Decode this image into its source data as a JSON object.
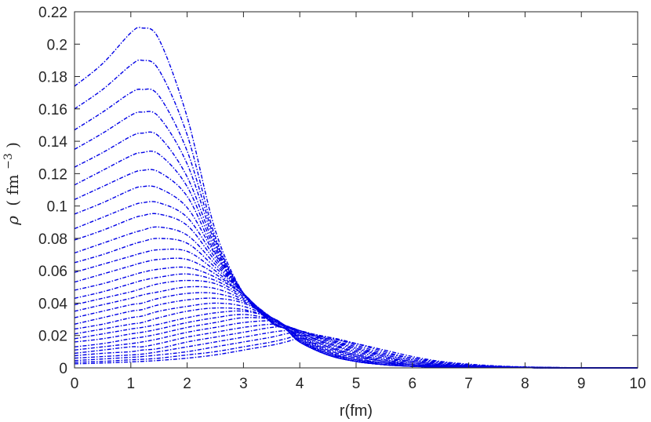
{
  "chart_data": {
    "type": "line",
    "title": "",
    "xlabel": "r(fm)",
    "ylabel": "ρ (fm⁻³)",
    "ylabel_parts": {
      "symbol": "ρ",
      "open": "(",
      "unit": "fm",
      "exp": "−3",
      "close": ")"
    },
    "xlim": [
      0,
      10
    ],
    "ylim": [
      0,
      0.22
    ],
    "xticks": [
      "0",
      "1",
      "2",
      "3",
      "4",
      "5",
      "6",
      "7",
      "8",
      "9",
      "10"
    ],
    "yticks": [
      "0",
      "0.02",
      "0.04",
      "0.06",
      "0.08",
      "0.1",
      "0.12",
      "0.14",
      "0.16",
      "0.18",
      "0.2",
      "0.22"
    ],
    "grid": false,
    "legend": "none",
    "line_style": "dash-dot",
    "line_color": "#0000e6",
    "x": [
      0,
      0.5,
      1,
      1.2,
      1.5,
      2,
      2.5,
      3,
      3.5,
      3.75,
      4,
      4.5,
      5,
      5.5,
      6,
      6.5,
      7,
      7.5,
      8,
      8.5,
      9,
      10
    ],
    "series": [
      {
        "values": [
          0.174,
          0.188,
          0.207,
          0.21,
          0.203,
          0.155,
          0.085,
          0.046,
          0.028,
          0.024,
          0.016,
          0.008,
          0.004,
          0.002,
          0.001,
          0.0005,
          0.0003,
          0.0001,
          0.0001,
          0,
          0,
          0
        ]
      },
      {
        "values": [
          0.16,
          0.172,
          0.187,
          0.19,
          0.184,
          0.144,
          0.081,
          0.046,
          0.028,
          0.024,
          0.016,
          0.008,
          0.004,
          0.002,
          0.001,
          0.0005,
          0.0003,
          0.0001,
          0.0001,
          0,
          0,
          0
        ]
      },
      {
        "values": [
          0.147,
          0.158,
          0.17,
          0.172,
          0.168,
          0.134,
          0.079,
          0.046,
          0.028,
          0.024,
          0.016,
          0.008,
          0.004,
          0.002,
          0.001,
          0.0005,
          0.0003,
          0.0001,
          0.0001,
          0,
          0,
          0
        ]
      },
      {
        "values": [
          0.135,
          0.145,
          0.156,
          0.158,
          0.155,
          0.126,
          0.077,
          0.046,
          0.028,
          0.024,
          0.016,
          0.008,
          0.004,
          0.002,
          0.001,
          0.0005,
          0.0003,
          0.0001,
          0.0001,
          0,
          0,
          0
        ]
      },
      {
        "values": [
          0.124,
          0.133,
          0.143,
          0.145,
          0.143,
          0.118,
          0.075,
          0.046,
          0.028,
          0.024,
          0.016,
          0.008,
          0.004,
          0.002,
          0.001,
          0.0005,
          0.0003,
          0.0001,
          0.0001,
          0,
          0,
          0
        ]
      },
      {
        "values": [
          0.113,
          0.122,
          0.131,
          0.133,
          0.132,
          0.112,
          0.073,
          0.046,
          0.028,
          0.024,
          0.016,
          0.008,
          0.004,
          0.002,
          0.001,
          0.0005,
          0.0003,
          0.0001,
          0.0001,
          0,
          0,
          0
        ]
      },
      {
        "values": [
          0.104,
          0.112,
          0.12,
          0.122,
          0.121,
          0.106,
          0.071,
          0.046,
          0.028,
          0.024,
          0.016,
          0.008,
          0.004,
          0.002,
          0.001,
          0.0005,
          0.0003,
          0.0001,
          0.0001,
          0,
          0,
          0
        ]
      },
      {
        "values": [
          0.095,
          0.102,
          0.11,
          0.112,
          0.111,
          0.099,
          0.07,
          0.046,
          0.028,
          0.024,
          0.016,
          0.008,
          0.004,
          0.002,
          0.001,
          0.0005,
          0.0003,
          0.0001,
          0.0001,
          0,
          0,
          0
        ]
      },
      {
        "values": [
          0.086,
          0.093,
          0.1,
          0.102,
          0.102,
          0.093,
          0.068,
          0.046,
          0.028,
          0.024,
          0.016,
          0.008,
          0.004,
          0.002,
          0.001,
          0.0005,
          0.0003,
          0.0001,
          0.0001,
          0,
          0,
          0
        ]
      },
      {
        "values": [
          0.079,
          0.085,
          0.092,
          0.094,
          0.095,
          0.088,
          0.066,
          0.046,
          0.029,
          0.024,
          0.017,
          0.008,
          0.004,
          0.002,
          0.001,
          0.0005,
          0.0003,
          0.0001,
          0.0001,
          0,
          0,
          0
        ]
      },
      {
        "values": [
          0.071,
          0.077,
          0.083,
          0.085,
          0.087,
          0.082,
          0.064,
          0.046,
          0.029,
          0.024,
          0.017,
          0.008,
          0.004,
          0.002,
          0.001,
          0.0005,
          0.0003,
          0.0001,
          0.0001,
          0,
          0,
          0
        ]
      },
      {
        "values": [
          0.065,
          0.07,
          0.076,
          0.078,
          0.08,
          0.077,
          0.062,
          0.046,
          0.029,
          0.024,
          0.017,
          0.009,
          0.004,
          0.002,
          0.001,
          0.0005,
          0.0003,
          0.0001,
          0.0001,
          0,
          0,
          0
        ]
      },
      {
        "values": [
          0.059,
          0.064,
          0.069,
          0.071,
          0.073,
          0.072,
          0.06,
          0.045,
          0.029,
          0.024,
          0.017,
          0.009,
          0.005,
          0.002,
          0.001,
          0.0006,
          0.0003,
          0.0001,
          0.0001,
          0,
          0,
          0
        ]
      },
      {
        "values": [
          0.053,
          0.058,
          0.063,
          0.065,
          0.067,
          0.067,
          0.058,
          0.045,
          0.03,
          0.025,
          0.018,
          0.009,
          0.005,
          0.002,
          0.001,
          0.0006,
          0.0003,
          0.0001,
          0.0001,
          0,
          0,
          0
        ]
      },
      {
        "values": [
          0.048,
          0.052,
          0.057,
          0.059,
          0.061,
          0.062,
          0.056,
          0.045,
          0.03,
          0.025,
          0.018,
          0.01,
          0.005,
          0.003,
          0.001,
          0.0006,
          0.0003,
          0.0002,
          0.0001,
          0,
          0,
          0
        ]
      },
      {
        "values": [
          0.043,
          0.047,
          0.052,
          0.054,
          0.056,
          0.058,
          0.054,
          0.044,
          0.031,
          0.025,
          0.019,
          0.01,
          0.005,
          0.003,
          0.001,
          0.0007,
          0.0003,
          0.0002,
          0.0001,
          0,
          0,
          0
        ]
      },
      {
        "values": [
          0.039,
          0.043,
          0.047,
          0.049,
          0.052,
          0.054,
          0.052,
          0.043,
          0.031,
          0.025,
          0.019,
          0.011,
          0.006,
          0.003,
          0.002,
          0.0007,
          0.0004,
          0.0002,
          0.0001,
          0,
          0,
          0
        ]
      },
      {
        "values": [
          0.035,
          0.039,
          0.043,
          0.045,
          0.047,
          0.05,
          0.049,
          0.042,
          0.031,
          0.025,
          0.02,
          0.011,
          0.006,
          0.003,
          0.002,
          0.0008,
          0.0004,
          0.0002,
          0.0001,
          0,
          0,
          0
        ]
      },
      {
        "values": [
          0.031,
          0.035,
          0.039,
          0.04,
          0.043,
          0.046,
          0.046,
          0.041,
          0.031,
          0.025,
          0.02,
          0.012,
          0.007,
          0.004,
          0.002,
          0.0009,
          0.0005,
          0.0002,
          0.0001,
          0,
          0,
          0
        ]
      },
      {
        "values": [
          0.027,
          0.031,
          0.035,
          0.036,
          0.039,
          0.042,
          0.043,
          0.04,
          0.031,
          0.026,
          0.021,
          0.013,
          0.007,
          0.004,
          0.002,
          0.001,
          0.0005,
          0.0003,
          0.0001,
          0.0001,
          0,
          0
        ]
      },
      {
        "values": [
          0.024,
          0.027,
          0.031,
          0.032,
          0.035,
          0.038,
          0.04,
          0.038,
          0.031,
          0.026,
          0.021,
          0.013,
          0.008,
          0.004,
          0.002,
          0.0011,
          0.0006,
          0.0003,
          0.0001,
          0.0001,
          0,
          0
        ]
      },
      {
        "values": [
          0.021,
          0.024,
          0.027,
          0.028,
          0.031,
          0.035,
          0.037,
          0.036,
          0.031,
          0.026,
          0.022,
          0.014,
          0.008,
          0.005,
          0.002,
          0.0012,
          0.0006,
          0.0003,
          0.0002,
          0.0001,
          0,
          0
        ]
      },
      {
        "values": [
          0.018,
          0.021,
          0.024,
          0.025,
          0.027,
          0.031,
          0.034,
          0.035,
          0.031,
          0.026,
          0.022,
          0.015,
          0.009,
          0.005,
          0.003,
          0.0014,
          0.0007,
          0.0004,
          0.0002,
          0.0001,
          0,
          0
        ]
      },
      {
        "values": [
          0.016,
          0.018,
          0.021,
          0.022,
          0.024,
          0.028,
          0.031,
          0.033,
          0.03,
          0.026,
          0.022,
          0.015,
          0.01,
          0.006,
          0.003,
          0.0016,
          0.0008,
          0.0004,
          0.0002,
          0.0001,
          0,
          0
        ]
      },
      {
        "values": [
          0.013,
          0.015,
          0.018,
          0.019,
          0.021,
          0.025,
          0.028,
          0.031,
          0.03,
          0.026,
          0.023,
          0.016,
          0.01,
          0.006,
          0.004,
          0.0018,
          0.0009,
          0.0005,
          0.0002,
          0.0001,
          0,
          0
        ]
      },
      {
        "values": [
          0.011,
          0.013,
          0.015,
          0.016,
          0.018,
          0.022,
          0.025,
          0.028,
          0.029,
          0.026,
          0.023,
          0.017,
          0.011,
          0.007,
          0.004,
          0.002,
          0.001,
          0.0005,
          0.0003,
          0.0001,
          0,
          0
        ]
      },
      {
        "values": [
          0.009,
          0.011,
          0.013,
          0.013,
          0.015,
          0.019,
          0.022,
          0.025,
          0.027,
          0.026,
          0.023,
          0.017,
          0.012,
          0.007,
          0.004,
          0.0023,
          0.0012,
          0.0006,
          0.0003,
          0.0001,
          0,
          0
        ]
      },
      {
        "values": [
          0.0075,
          0.009,
          0.01,
          0.011,
          0.012,
          0.016,
          0.019,
          0.022,
          0.025,
          0.025,
          0.023,
          0.018,
          0.012,
          0.008,
          0.005,
          0.0026,
          0.0013,
          0.0007,
          0.0003,
          0.0002,
          0,
          0
        ]
      },
      {
        "values": [
          0.006,
          0.007,
          0.008,
          0.0085,
          0.01,
          0.013,
          0.016,
          0.019,
          0.022,
          0.023,
          0.023,
          0.018,
          0.013,
          0.008,
          0.005,
          0.003,
          0.0015,
          0.0008,
          0.0004,
          0.0002,
          0.0001,
          0
        ]
      },
      {
        "values": [
          0.0045,
          0.0055,
          0.0065,
          0.007,
          0.008,
          0.01,
          0.013,
          0.016,
          0.019,
          0.021,
          0.022,
          0.019,
          0.014,
          0.009,
          0.006,
          0.0033,
          0.0017,
          0.0009,
          0.0004,
          0.0002,
          0.0001,
          0
        ]
      },
      {
        "values": [
          0.0035,
          0.004,
          0.005,
          0.0053,
          0.006,
          0.008,
          0.01,
          0.013,
          0.016,
          0.018,
          0.02,
          0.019,
          0.015,
          0.01,
          0.006,
          0.0037,
          0.002,
          0.001,
          0.0005,
          0.0002,
          0.0001,
          0
        ]
      },
      {
        "values": [
          0.0025,
          0.003,
          0.0037,
          0.004,
          0.0046,
          0.006,
          0.008,
          0.011,
          0.014,
          0.016,
          0.018,
          0.018,
          0.015,
          0.011,
          0.007,
          0.004,
          0.0023,
          0.0012,
          0.0006,
          0.0003,
          0.0001,
          0
        ]
      }
    ]
  }
}
